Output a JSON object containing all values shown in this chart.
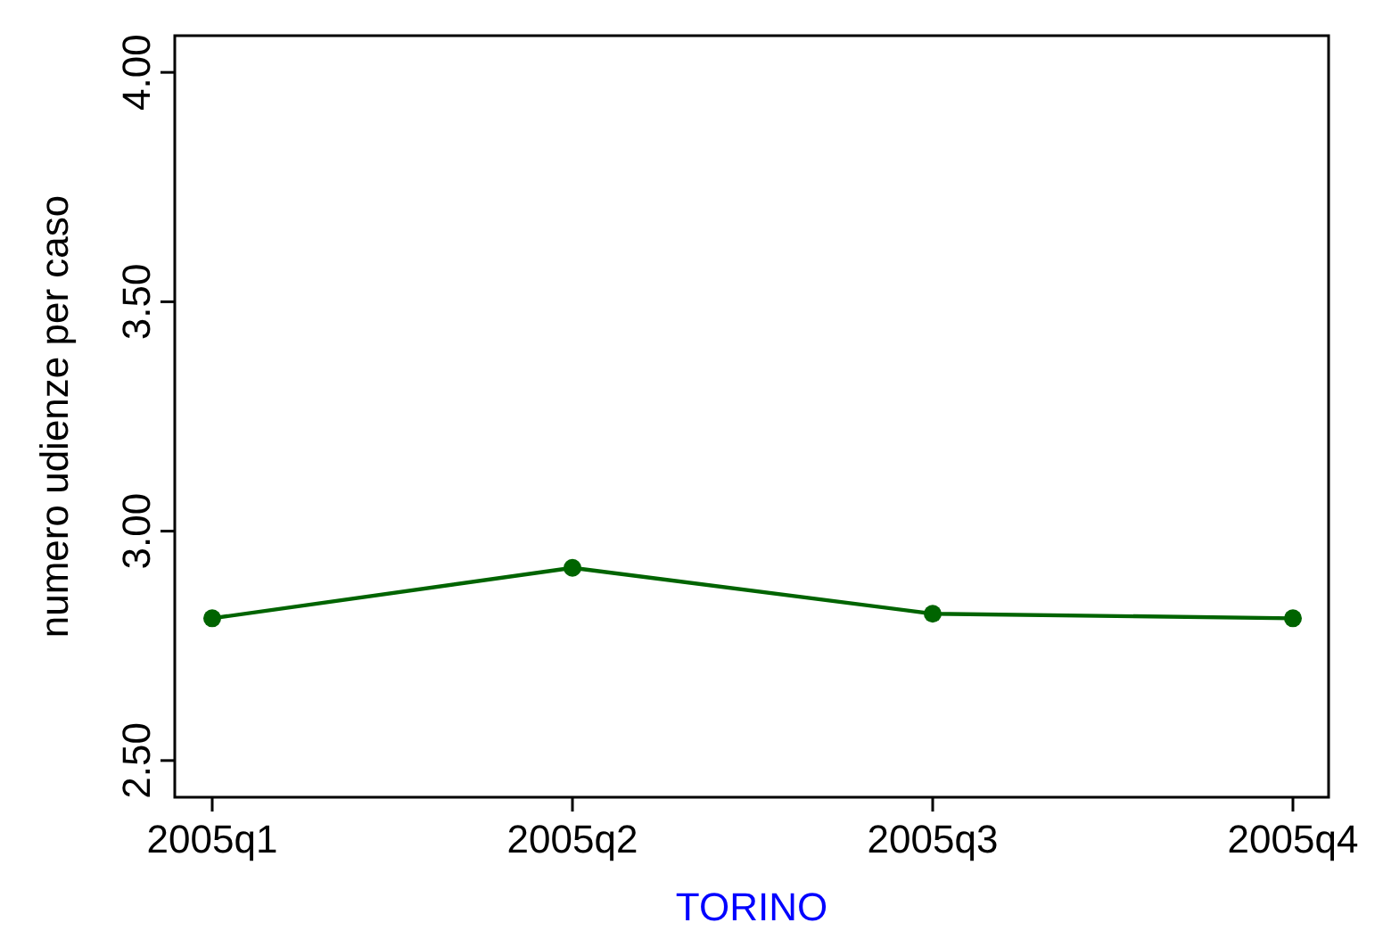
{
  "chart_data": {
    "type": "line",
    "xlabel": "TORINO",
    "ylabel": "numero udienze per caso",
    "categories": [
      "2005q1",
      "2005q2",
      "2005q3",
      "2005q4"
    ],
    "series": [
      {
        "color": "#006400",
        "values": [
          2.81,
          2.92,
          2.82,
          2.81
        ]
      }
    ],
    "ylim": [
      2.42,
      4.08
    ],
    "yticks": [
      {
        "value": 2.5,
        "label": "2.50"
      },
      {
        "value": 3,
        "label": "3.00"
      },
      {
        "value": 3.5,
        "label": "3.50"
      },
      {
        "value": 4,
        "label": "4.00"
      }
    ],
    "grid": false,
    "marker": "circle",
    "line_style": "solid"
  }
}
